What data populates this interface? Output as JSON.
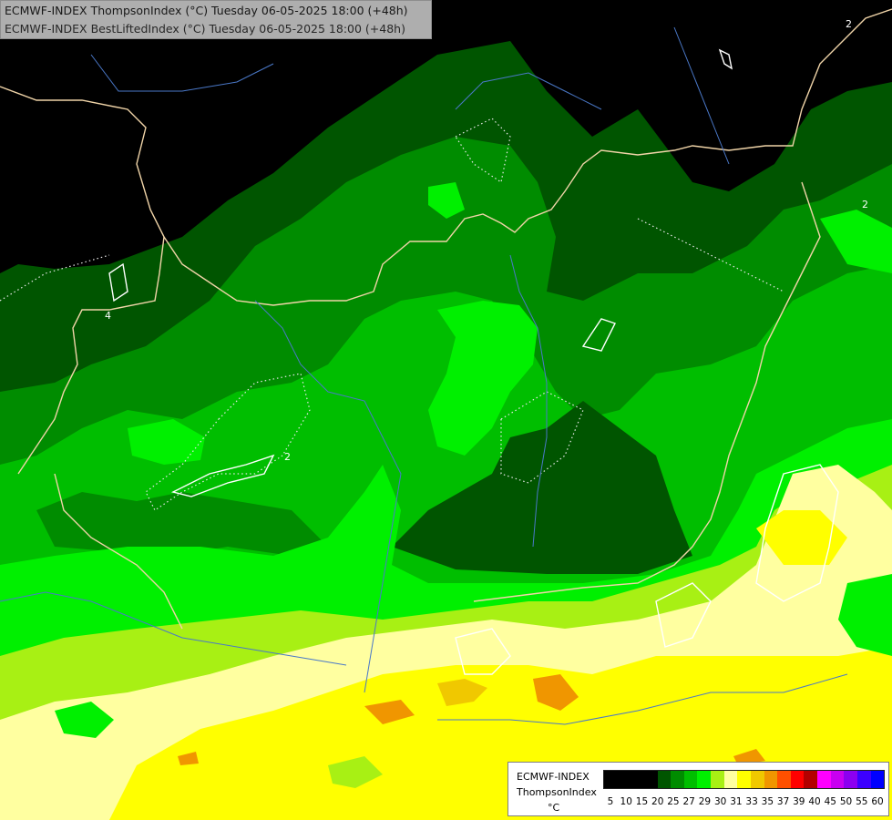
{
  "header": {
    "line1": "ECMWF-INDEX ThompsonIndex (°C) Tuesday 06-05-2025 18:00 (+48h)",
    "line2": "ECMWF-INDEX BestLiftedIndex (°C) Tuesday 06-05-2025 18:00 (+48h)"
  },
  "legend": {
    "title": "ECMWF-INDEX",
    "index": "ThompsonIndex",
    "unit": "°C",
    "colors": [
      "#000000",
      "#000000",
      "#000000",
      "#000000",
      "#005500",
      "#008c00",
      "#00be00",
      "#00f000",
      "#a8f014",
      "#ffffa0",
      "#ffff00",
      "#f0c800",
      "#f09600",
      "#ff5000",
      "#ff0000",
      "#b40000",
      "#ff00ff",
      "#c800f0",
      "#8c00f0",
      "#3c00ff",
      "#0000ff"
    ],
    "ticks": [
      "5",
      "10",
      "15",
      "20",
      "25",
      "27",
      "29",
      "30",
      "31",
      "33",
      "35",
      "37",
      "39",
      "40",
      "45",
      "50",
      "55",
      "60"
    ]
  },
  "map": {
    "contour_labels": [
      "2",
      "2",
      "4",
      "2"
    ]
  }
}
